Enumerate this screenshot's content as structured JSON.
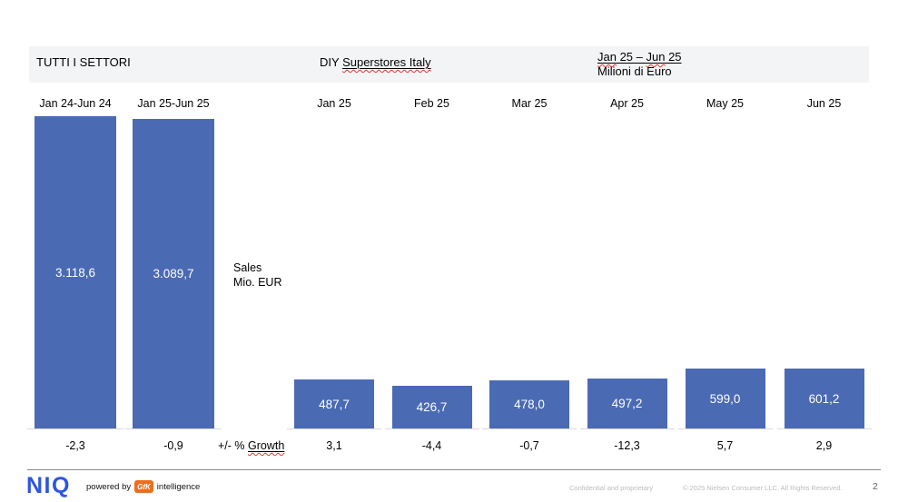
{
  "header": {
    "left_title": "TUTTI I SETTORI",
    "center_prefix": "DIY ",
    "center_underlined": "Superstores Italy",
    "right_p1": "Jan",
    "right_p2": " 25 – ",
    "right_p3": "Jun",
    "right_p4": " 25",
    "right_line2": "Milioni di Euro"
  },
  "axis": {
    "sales_line1": "Sales",
    "sales_line2": "Mio. EUR",
    "growth_prefix": "+/- % ",
    "growth_word": "Growth"
  },
  "chart_data": {
    "type": "bar",
    "title": "DIY Superstores Italy",
    "subtitle": "Jan 25 – Jun 25, Milioni di Euro",
    "ylabel": "Sales Mio. EUR",
    "secondary_row_label": "+/- % Growth",
    "categories": [
      "Jan 24-Jun 24",
      "Jan 25-Jun 25",
      "Jan 25",
      "Feb 25",
      "Mar 25",
      "Apr 25",
      "May 25",
      "Jun 25"
    ],
    "values": [
      3118.6,
      3089.7,
      487.7,
      426.7,
      478.0,
      497.2,
      599.0,
      601.2
    ],
    "value_labels": [
      "3.118,6",
      "3.089,7",
      "487,7",
      "426,7",
      "478,0",
      "497,2",
      "599,0",
      "601,2"
    ],
    "growth_values": [
      -2.3,
      -0.9,
      3.1,
      -4.4,
      -0.7,
      -12.3,
      5.7,
      2.9
    ],
    "growth_labels": [
      "-2,3",
      "-0,9",
      "3,1",
      "-4,4",
      "-0,7",
      "-12,3",
      "5,7",
      "2,9"
    ],
    "bar_color": "#4a6ab4",
    "ylim": [
      0,
      3200
    ],
    "grid": false,
    "legend": "none"
  },
  "footer": {
    "niq": "NIQ",
    "powered_by": "powered by",
    "gfk": "GfK",
    "intelligence": "intelligence",
    "confidential": "Confidential and proprietary",
    "copyright": "© 2025 Nielsen Consumer LLC. All Rights Reserved.",
    "page": "2"
  }
}
